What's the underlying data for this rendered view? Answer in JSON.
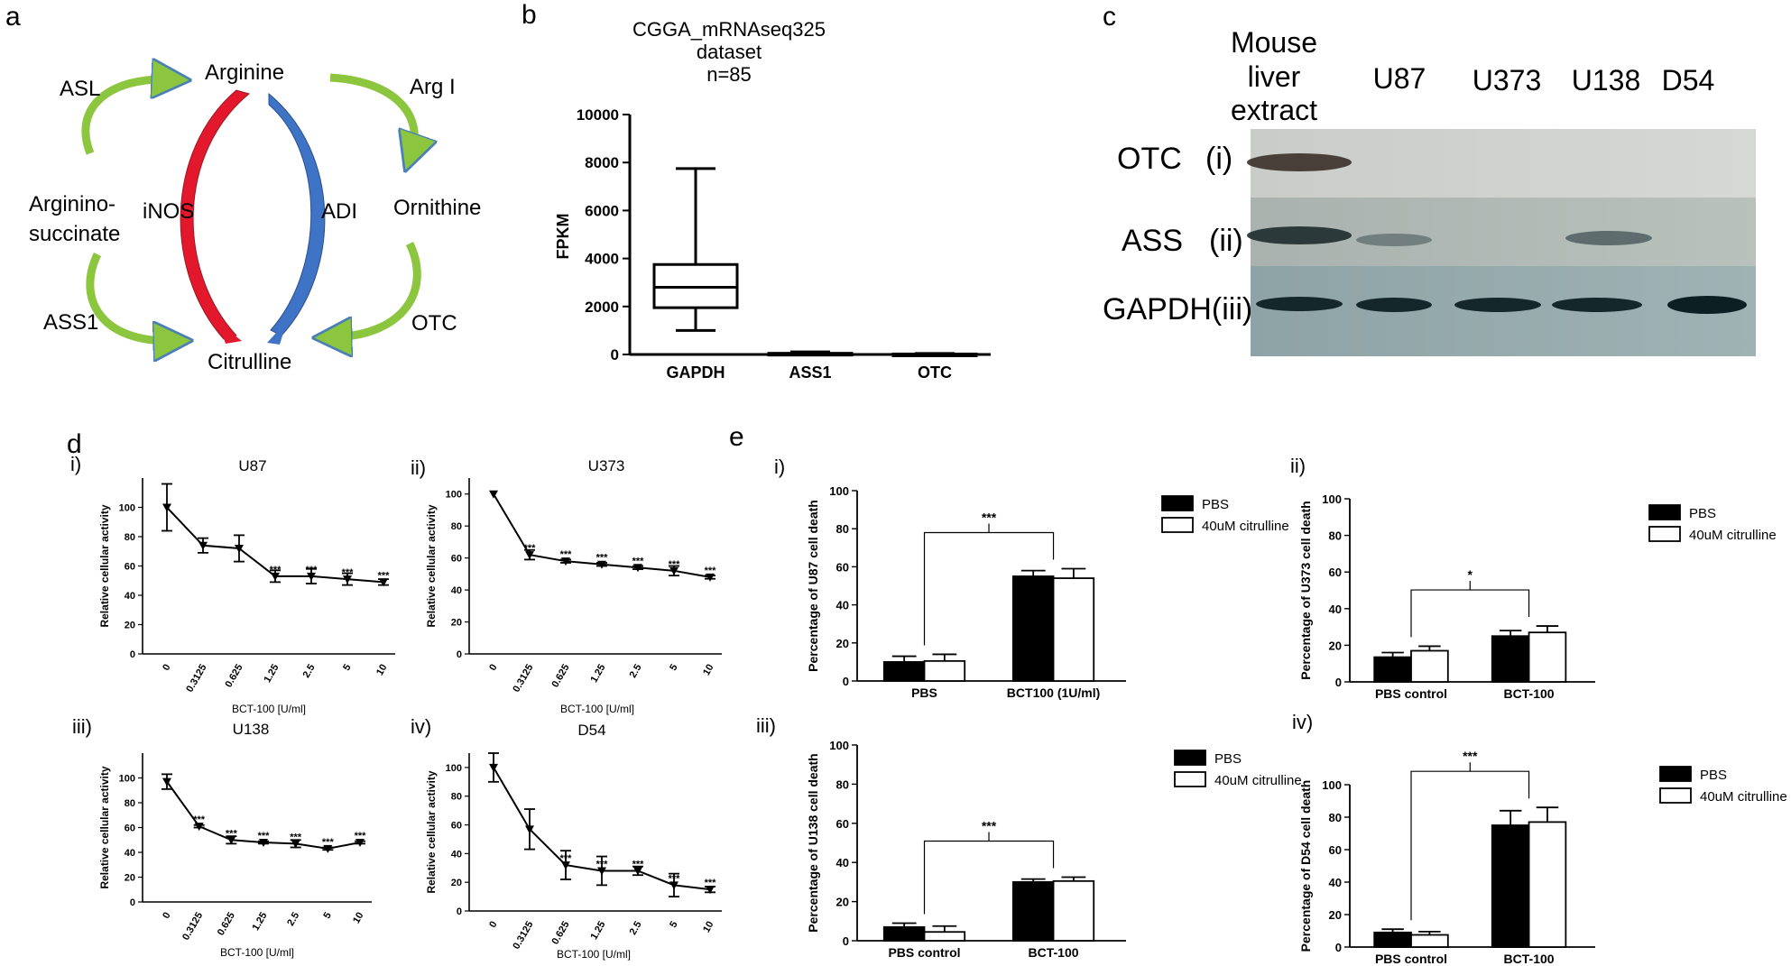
{
  "panels": {
    "a": {
      "letter": "a",
      "labels": {
        "arginine": "Arginine",
        "citrulline": "Citrulline",
        "argininosuccinate_1": "Arginino-",
        "argininosuccinate_2": "succinate",
        "ornithine": "Ornithine",
        "asl": "ASL",
        "ass1": "ASS1",
        "arg1": "Arg I",
        "otc": "OTC",
        "inos": "iNOS",
        "adi": "ADI"
      },
      "colors": {
        "inos_arrow": "#e3182d",
        "adi_arrow": "#3f73c6",
        "cycle_arrows": "#8cc63f"
      }
    },
    "b": {
      "letter": "b",
      "title_lines": [
        "CGGA_mRNAseq325",
        "dataset",
        "n=85"
      ],
      "ylabel": "FPKM",
      "chart_data": {
        "type": "box",
        "title": "CGGA_mRNAseq325 dataset n=85",
        "ylabel": "FPKM",
        "ylim": [
          0,
          10000
        ],
        "yticks": [
          0,
          2000,
          4000,
          6000,
          8000,
          10000
        ],
        "categories": [
          "GAPDH",
          "ASS1",
          "OTC"
        ],
        "boxes": [
          {
            "name": "GAPDH",
            "min": 1000,
            "q1": 1950,
            "median": 2800,
            "q3": 3750,
            "max": 7750
          },
          {
            "name": "ASS1",
            "min": 0,
            "q1": 15,
            "median": 30,
            "q3": 50,
            "max": 110
          },
          {
            "name": "OTC",
            "min": 0,
            "q1": 5,
            "median": 10,
            "q3": 20,
            "max": 40
          }
        ]
      }
    },
    "c": {
      "letter": "c",
      "lanes": [
        "Mouse",
        "liver",
        "extract",
        "U87",
        "U373",
        "U138",
        "D54"
      ],
      "rows": [
        {
          "protein": "OTC",
          "numeral": "(i)"
        },
        {
          "protein": "ASS",
          "numeral": "(ii)"
        },
        {
          "protein": "GAPDH(iii)",
          "numeral": ""
        }
      ]
    },
    "d": {
      "letter": "d",
      "charts": [
        {
          "sub": "i)",
          "title": "U87",
          "ylabel": "Relative cellular activity",
          "xlabel": "BCT-100 [U/ml]",
          "chart_data": {
            "type": "line",
            "x": [
              "0",
              "0.3125",
              "0.625",
              "1.25",
              "2.5",
              "5",
              "10"
            ],
            "values": [
              100,
              74,
              72,
              53,
              53,
              51,
              49
            ],
            "errors": [
              16,
              5,
              9,
              4,
              5,
              4,
              2
            ],
            "sig": [
              "",
              "",
              "",
              "***",
              "***",
              "***",
              "***"
            ],
            "ylim": [
              0,
              120
            ],
            "yticks": [
              0,
              20,
              40,
              60,
              80,
              100
            ]
          }
        },
        {
          "sub": "ii)",
          "title": "U373",
          "ylabel": "Relative cellular activity",
          "xlabel": "BCT-100 [U/ml]",
          "chart_data": {
            "type": "line",
            "x": [
              "0",
              "0.3125",
              "0.625",
              "1.25",
              "2.5",
              "5",
              "10"
            ],
            "values": [
              100,
              62,
              58,
              56,
              54,
              52,
              48
            ],
            "errors": [
              0,
              3,
              1,
              1,
              1,
              3,
              1
            ],
            "sig": [
              "",
              "***",
              "***",
              "***",
              "***",
              "***",
              "***"
            ],
            "ylim": [
              0,
              110
            ],
            "yticks": [
              0,
              20,
              40,
              60,
              80,
              100
            ]
          }
        },
        {
          "sub": "iii)",
          "title": "U138",
          "ylabel": "Relative cellular activity",
          "xlabel": "BCT-100 [U/ml]",
          "chart_data": {
            "type": "line",
            "x": [
              "0",
              "0.3125",
              "0.625",
              "1.25",
              "2.5",
              "5",
              "10"
            ],
            "values": [
              97,
              61,
              50,
              48,
              47,
              43,
              48
            ],
            "errors": [
              6,
              1,
              3,
              1,
              3,
              1,
              1
            ],
            "sig": [
              "",
              "***",
              "***",
              "***",
              "***",
              "***",
              "***"
            ],
            "ylim": [
              0,
              120
            ],
            "yticks": [
              0,
              20,
              40,
              60,
              80,
              100
            ]
          }
        },
        {
          "sub": "iv)",
          "title": "D54",
          "ylabel": "Relative cellular activity",
          "xlabel": "BCT-100 [U/ml]",
          "chart_data": {
            "type": "line",
            "x": [
              "0",
              "0.3125",
              "0.625",
              "1.25",
              "2.5",
              "5",
              "10"
            ],
            "values": [
              100,
              57,
              32,
              28,
              28,
              18,
              15
            ],
            "errors": [
              10,
              14,
              10,
              10,
              3,
              8,
              2
            ],
            "sig": [
              "",
              "",
              "***",
              "***",
              "***",
              "***",
              "***"
            ],
            "ylim": [
              0,
              110
            ],
            "yticks": [
              0,
              20,
              40,
              60,
              80,
              100
            ]
          }
        }
      ]
    },
    "e": {
      "letter": "e",
      "charts": [
        {
          "sub": "i)",
          "ylabel": "Percentage of U87 cell death",
          "legend": [
            "PBS",
            "40uM citrulline"
          ],
          "sig": "***",
          "chart_data": {
            "type": "bar",
            "categories": [
              "PBS",
              "BCT100 (1U/ml)"
            ],
            "series": [
              {
                "name": "PBS",
                "values": [
                  10,
                  55
                ],
                "errors": [
                  3,
                  3
                ]
              },
              {
                "name": "40uM citrulline",
                "values": [
                  10.5,
                  54
                ],
                "errors": [
                  3.5,
                  5
                ]
              }
            ],
            "ylim": [
              0,
              100
            ],
            "yticks": [
              0,
              20,
              40,
              60,
              80,
              100
            ]
          }
        },
        {
          "sub": "ii)",
          "ylabel": "Percentage of U373 cell death",
          "legend": [
            "PBS",
            "40uM citrulline"
          ],
          "sig": "*",
          "chart_data": {
            "type": "bar",
            "categories": [
              "PBS control",
              "BCT-100"
            ],
            "series": [
              {
                "name": "PBS",
                "values": [
                  13.5,
                  25
                ],
                "errors": [
                  2.5,
                  3
                ]
              },
              {
                "name": "40uM citrulline",
                "values": [
                  17,
                  27
                ],
                "errors": [
                  2.5,
                  3.5
                ]
              }
            ],
            "ylim": [
              0,
              100
            ],
            "yticks": [
              0,
              20,
              40,
              60,
              80,
              100
            ]
          }
        },
        {
          "sub": "iii)",
          "ylabel": "Percentage of U138 cell death",
          "legend": [
            "PBS",
            "40uM citrulline"
          ],
          "sig": "***",
          "chart_data": {
            "type": "bar",
            "categories": [
              "PBS control",
              "BCT-100"
            ],
            "series": [
              {
                "name": "PBS",
                "values": [
                  7,
                  30
                ],
                "errors": [
                  2,
                  1.5
                ]
              },
              {
                "name": "40uM citrulline",
                "values": [
                  4.5,
                  30.5
                ],
                "errors": [
                  3,
                  2
                ]
              }
            ],
            "ylim": [
              0,
              100
            ],
            "yticks": [
              0,
              20,
              40,
              60,
              80,
              100
            ]
          }
        },
        {
          "sub": "iv)",
          "ylabel": "Percentage of D54 cell death",
          "legend": [
            "PBS",
            "40uM citrulline"
          ],
          "sig": "***",
          "chart_data": {
            "type": "bar",
            "categories": [
              "PBS control",
              "BCT-100"
            ],
            "series": [
              {
                "name": "PBS",
                "values": [
                  9,
                  75
                ],
                "errors": [
                  2,
                  9
                ]
              },
              {
                "name": "40uM citrulline",
                "values": [
                  7.5,
                  77
                ],
                "errors": [
                  2,
                  9
                ]
              }
            ],
            "ylim": [
              0,
              100
            ],
            "yticks": [
              0,
              20,
              40,
              60,
              80,
              100
            ]
          }
        }
      ]
    }
  }
}
